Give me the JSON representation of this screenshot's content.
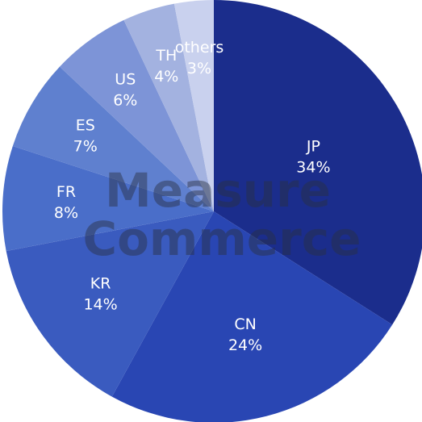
{
  "chart_data": {
    "type": "pie",
    "categories": [
      "JP",
      "CN",
      "KR",
      "FR",
      "ES",
      "US",
      "TH",
      "others"
    ],
    "values": [
      34,
      24,
      14,
      8,
      7,
      6,
      4,
      3
    ],
    "value_labels": [
      "34%",
      "24%",
      "14%",
      "8%",
      "7%",
      "6%",
      "4%",
      "3%"
    ],
    "colors": [
      "#1b2d8c",
      "#2946b3",
      "#3a5bbf",
      "#4a6ec9",
      "#5f80cf",
      "#7d94d7",
      "#a3b2e0",
      "#c9d1ee"
    ],
    "watermark": [
      "Measure",
      "Commerce"
    ]
  }
}
